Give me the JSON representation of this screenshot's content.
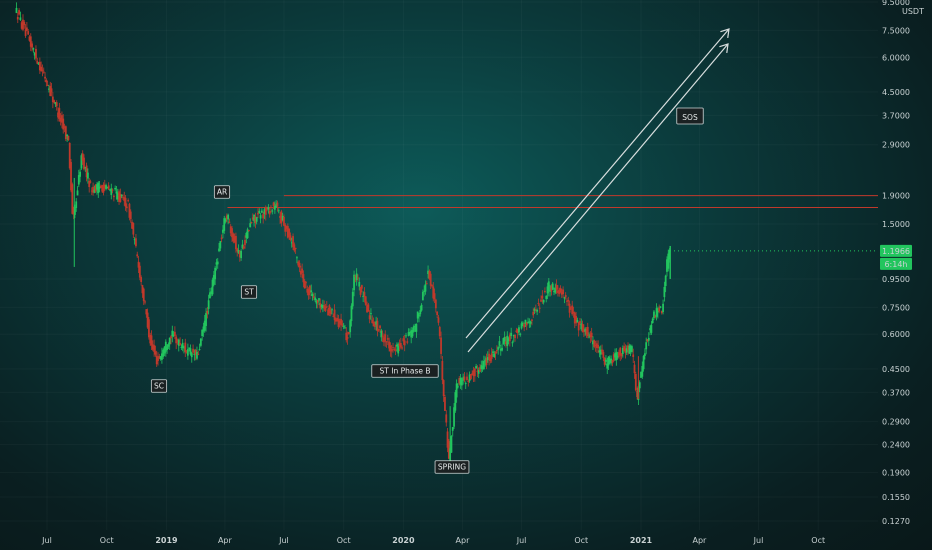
{
  "chart_data": {
    "type": "candlestick",
    "scale": "log",
    "currency_label": "USDT",
    "y_ticks": [
      "9.5000",
      "7.5000",
      "6.0000",
      "4.5000",
      "3.7000",
      "2.9000",
      "1.9000",
      "1.5000",
      "0.9500",
      "0.7500",
      "0.6000",
      "0.4500",
      "0.3700",
      "0.2900",
      "0.2400",
      "0.1900",
      "0.1550",
      "0.1270"
    ],
    "y_tick_values": [
      9.5,
      7.5,
      6.0,
      4.5,
      3.7,
      2.9,
      1.9,
      1.5,
      0.95,
      0.75,
      0.6,
      0.45,
      0.37,
      0.29,
      0.24,
      0.19,
      0.155,
      0.127
    ],
    "x_ticks": [
      "Jul",
      "Oct",
      "2019",
      "Apr",
      "Jul",
      "Oct",
      "2020",
      "Apr",
      "Jul",
      "Oct",
      "2021",
      "Apr",
      "Jul",
      "Oct"
    ],
    "x_tick_dates": [
      "2018-07-01",
      "2018-10-01",
      "2019-01-01",
      "2019-04-01",
      "2019-07-01",
      "2019-10-01",
      "2020-01-01",
      "2020-04-01",
      "2020-07-01",
      "2020-10-01",
      "2021-01-01",
      "2021-04-01",
      "2021-07-01",
      "2021-10-01"
    ],
    "last_price_label": "1.1966",
    "countdown_label": "6:14h",
    "price_path": [
      [
        "2018-05-15",
        9.0
      ],
      [
        "2018-06-10",
        6.5
      ],
      [
        "2018-07-01",
        5.0
      ],
      [
        "2018-07-20",
        3.8
      ],
      [
        "2018-08-05",
        3.0
      ],
      [
        "2018-08-12",
        1.5
      ],
      [
        "2018-08-25",
        2.6
      ],
      [
        "2018-09-10",
        2.0
      ],
      [
        "2018-09-25",
        2.05
      ],
      [
        "2018-10-15",
        1.95
      ],
      [
        "2018-11-05",
        1.75
      ],
      [
        "2018-11-20",
        1.1
      ],
      [
        "2018-12-10",
        0.55
      ],
      [
        "2018-12-20",
        0.48
      ],
      [
        "2019-01-10",
        0.6
      ],
      [
        "2019-02-05",
        0.52
      ],
      [
        "2019-02-20",
        0.5
      ],
      [
        "2019-03-10",
        0.8
      ],
      [
        "2019-04-05",
        1.65
      ],
      [
        "2019-04-25",
        1.15
      ],
      [
        "2019-05-15",
        1.55
      ],
      [
        "2019-06-20",
        1.75
      ],
      [
        "2019-07-15",
        1.3
      ],
      [
        "2019-08-05",
        0.9
      ],
      [
        "2019-08-25",
        0.78
      ],
      [
        "2019-09-20",
        0.7
      ],
      [
        "2019-10-10",
        0.58
      ],
      [
        "2019-10-20",
        1.0
      ],
      [
        "2019-11-10",
        0.72
      ],
      [
        "2019-11-30",
        0.6
      ],
      [
        "2019-12-20",
        0.52
      ],
      [
        "2020-01-20",
        0.62
      ],
      [
        "2020-02-10",
        1.0
      ],
      [
        "2020-02-25",
        0.7
      ],
      [
        "2020-03-13",
        0.21
      ],
      [
        "2020-03-25",
        0.4
      ],
      [
        "2020-04-15",
        0.42
      ],
      [
        "2020-05-15",
        0.5
      ],
      [
        "2020-06-05",
        0.56
      ],
      [
        "2020-06-25",
        0.6
      ],
      [
        "2020-07-20",
        0.7
      ],
      [
        "2020-08-15",
        0.9
      ],
      [
        "2020-09-05",
        0.85
      ],
      [
        "2020-09-25",
        0.66
      ],
      [
        "2020-10-15",
        0.6
      ],
      [
        "2020-11-10",
        0.47
      ],
      [
        "2020-12-01",
        0.52
      ],
      [
        "2020-12-20",
        0.53
      ],
      [
        "2020-12-28",
        0.35
      ],
      [
        "2021-01-10",
        0.55
      ],
      [
        "2021-01-25",
        0.72
      ],
      [
        "2021-02-05",
        0.75
      ],
      [
        "2021-02-10",
        1.0
      ],
      [
        "2021-02-15",
        1.2
      ]
    ],
    "horizontal_lines": [
      1.9,
      1.72
    ],
    "annotations": [
      "AR",
      "ST",
      "SC",
      "ST In Phase B",
      "SPRING",
      "SOS"
    ],
    "colors": {
      "up": "#22c55e",
      "down": "#c0392b",
      "resistance": "#c0392b",
      "last_price": "#22c55e",
      "arrow": "#d8dede",
      "axis_text": "#c9d2d3"
    }
  }
}
